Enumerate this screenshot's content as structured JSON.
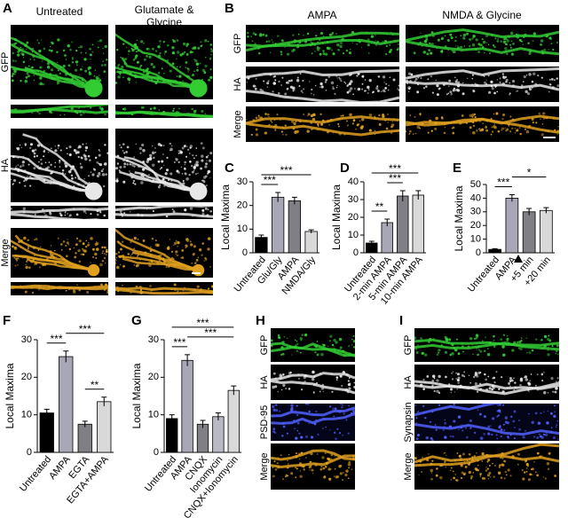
{
  "panel_a": {
    "label": "A",
    "columns": [
      "Untreated",
      "Glutamate & Glycine"
    ],
    "rows": [
      "GFP",
      "HA",
      "Merge"
    ]
  },
  "panel_b": {
    "label": "B",
    "columns": [
      "AMPA",
      "NMDA & Glycine"
    ],
    "rows": [
      "GFP",
      "HA",
      "Merge"
    ]
  },
  "panel_h": {
    "label": "H",
    "rows": [
      "GFP",
      "HA",
      "PSD-95",
      "Merge"
    ]
  },
  "panel_i": {
    "label": "I",
    "rows": [
      "GFP",
      "HA",
      "Synapsin",
      "Merge"
    ]
  },
  "chart_data": [
    {
      "type": "bar",
      "label": "C",
      "ylabel": "Local Maxima",
      "categories": [
        "Untreated",
        "Glu/Gly",
        "AMPA",
        "NMDA/Gly"
      ],
      "values": [
        6.5,
        23.5,
        22,
        9
      ],
      "errors": [
        1,
        2,
        1.5,
        0.7
      ],
      "colors": [
        "#000000",
        "#a7a7b5",
        "#7f7f85",
        "#d9d9d9"
      ],
      "ylim": [
        0,
        30
      ],
      "yticks": [
        0,
        10,
        20,
        30
      ],
      "significance": [
        {
          "label": "***",
          "between": [
            "Untreated",
            "Glu/Gly"
          ]
        },
        {
          "label": "***",
          "between": [
            "Untreated",
            "NMDA/Gly"
          ]
        }
      ]
    },
    {
      "type": "bar",
      "label": "D",
      "ylabel": "Local Maxima",
      "categories": [
        "Untreated",
        "2-min AMPA",
        "5-min AMPA",
        "10-min AMPA"
      ],
      "values": [
        5.5,
        17,
        32,
        32.5
      ],
      "errors": [
        1,
        2,
        3,
        2.5
      ],
      "colors": [
        "#000000",
        "#a7a7b5",
        "#7f7f85",
        "#d9d9d9"
      ],
      "ylim": [
        0,
        40
      ],
      "yticks": [
        0,
        10,
        20,
        30,
        40
      ],
      "significance": [
        {
          "label": "**",
          "between": [
            "Untreated",
            "2-min AMPA"
          ]
        },
        {
          "label": "***",
          "between": [
            "2-min AMPA",
            "5-min AMPA"
          ]
        },
        {
          "label": "***",
          "between": [
            "Untreated",
            "10-min AMPA"
          ]
        }
      ]
    },
    {
      "type": "bar",
      "label": "E",
      "ylabel": "Local Maxima",
      "categories": [
        "Untreated",
        "AMPA",
        "+5 min",
        "+20 min"
      ],
      "values": [
        2.5,
        40,
        30,
        31
      ],
      "errors": [
        0.5,
        2.5,
        2.5,
        2
      ],
      "colors": [
        "#000000",
        "#a7a7b5",
        "#7f7f85",
        "#d9d9d9"
      ],
      "ylim": [
        0,
        50
      ],
      "yticks": [
        0,
        10,
        20,
        30,
        40,
        50
      ],
      "significance": [
        {
          "label": "***",
          "between": [
            "Untreated",
            "AMPA"
          ]
        },
        {
          "label": "*",
          "between": [
            "AMPA",
            "+20 min"
          ]
        }
      ]
    },
    {
      "type": "bar",
      "label": "F",
      "ylabel": "Local Maxima",
      "categories": [
        "Untreated",
        "AMPA",
        "EGTA",
        "EGTA+AMPA"
      ],
      "values": [
        10.5,
        25.5,
        7.5,
        13.5
      ],
      "errors": [
        1,
        1.5,
        0.8,
        1.2
      ],
      "colors": [
        "#000000",
        "#a7a7b5",
        "#7f7f85",
        "#d9d9d9"
      ],
      "ylim": [
        0,
        30
      ],
      "yticks": [
        0,
        10,
        20,
        30
      ],
      "significance": [
        {
          "label": "**",
          "between": [
            "EGTA",
            "EGTA+AMPA"
          ]
        },
        {
          "label": "***",
          "between": [
            "Untreated",
            "AMPA"
          ]
        },
        {
          "label": "***",
          "between": [
            "AMPA",
            "EGTA+AMPA"
          ]
        }
      ]
    },
    {
      "type": "bar",
      "label": "G",
      "ylabel": "Local Maxima",
      "categories": [
        "Untreated",
        "AMPA",
        "CNQX",
        "Ionomycin",
        "CNQX+Ionomycin"
      ],
      "values": [
        9,
        24.5,
        7.5,
        9.5,
        16.5
      ],
      "errors": [
        1,
        1.5,
        1,
        1,
        1.2
      ],
      "colors": [
        "#000000",
        "#a7a7b5",
        "#7f7f85",
        "#b9b9c4",
        "#d9d9d9"
      ],
      "ylim": [
        0,
        30
      ],
      "yticks": [
        0,
        10,
        20,
        30
      ],
      "significance": [
        {
          "label": "***",
          "between": [
            "Untreated",
            "AMPA"
          ]
        },
        {
          "label": "***",
          "between": [
            "AMPA",
            "CNQX+Ionomycin"
          ]
        },
        {
          "label": "***",
          "between": [
            "Untreated",
            "CNQX+Ionomycin"
          ]
        }
      ]
    }
  ]
}
